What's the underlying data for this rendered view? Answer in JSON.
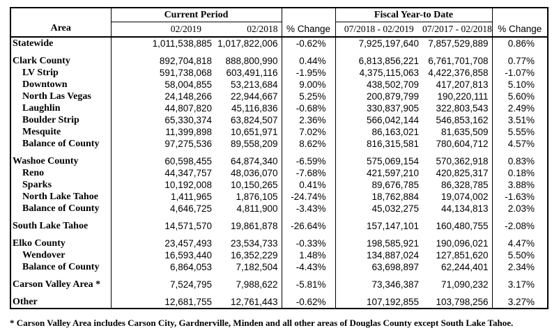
{
  "table": {
    "header": {
      "area_label": "Area",
      "pct_change_label": "% Change",
      "current_period": {
        "title": "Current Period",
        "col1": "02/2019",
        "col2": "02/2018"
      },
      "fiscal_ytd": {
        "title": "Fiscal Year-to Date",
        "col1": "07/2018 - 02/2019",
        "col2": "07/2017 - 02/2018"
      }
    },
    "rows": [
      {
        "area": "Statewide",
        "level": 0,
        "spacer_before": false,
        "cp_2019": "1,011,538,885",
        "cp_2018": "1,017,822,006",
        "pct_cp": "-0.62%",
        "fy_1819": "7,925,197,640",
        "fy_1718": "7,857,529,889",
        "pct_fy": "0.86%"
      },
      {
        "area": "Clark County",
        "level": 0,
        "spacer_before": true,
        "cp_2019": "892,704,818",
        "cp_2018": "888,800,990",
        "pct_cp": "0.44%",
        "fy_1819": "6,813,856,221",
        "fy_1718": "6,761,701,708",
        "pct_fy": "0.77%"
      },
      {
        "area": "LV Strip",
        "level": 1,
        "spacer_before": false,
        "cp_2019": "591,738,068",
        "cp_2018": "603,491,116",
        "pct_cp": "-1.95%",
        "fy_1819": "4,375,115,063",
        "fy_1718": "4,422,376,858",
        "pct_fy": "-1.07%"
      },
      {
        "area": "Downtown",
        "level": 1,
        "spacer_before": false,
        "cp_2019": "58,004,855",
        "cp_2018": "53,213,684",
        "pct_cp": "9.00%",
        "fy_1819": "438,502,709",
        "fy_1718": "417,207,813",
        "pct_fy": "5.10%"
      },
      {
        "area": "North Las Vegas",
        "level": 1,
        "spacer_before": false,
        "cp_2019": "24,148,266",
        "cp_2018": "22,944,667",
        "pct_cp": "5.25%",
        "fy_1819": "200,879,799",
        "fy_1718": "190,220,111",
        "pct_fy": "5.60%"
      },
      {
        "area": "Laughlin",
        "level": 1,
        "spacer_before": false,
        "cp_2019": "44,807,820",
        "cp_2018": "45,116,836",
        "pct_cp": "-0.68%",
        "fy_1819": "330,837,905",
        "fy_1718": "322,803,543",
        "pct_fy": "2.49%"
      },
      {
        "area": "Boulder Strip",
        "level": 1,
        "spacer_before": false,
        "cp_2019": "65,330,374",
        "cp_2018": "63,824,507",
        "pct_cp": "2.36%",
        "fy_1819": "566,042,144",
        "fy_1718": "546,853,162",
        "pct_fy": "3.51%"
      },
      {
        "area": "Mesquite",
        "level": 1,
        "spacer_before": false,
        "cp_2019": "11,399,898",
        "cp_2018": "10,651,971",
        "pct_cp": "7.02%",
        "fy_1819": "86,163,021",
        "fy_1718": "81,635,509",
        "pct_fy": "5.55%"
      },
      {
        "area": "Balance of County",
        "level": 1,
        "spacer_before": false,
        "cp_2019": "97,275,536",
        "cp_2018": "89,558,209",
        "pct_cp": "8.62%",
        "fy_1819": "816,315,581",
        "fy_1718": "780,604,712",
        "pct_fy": "4.57%"
      },
      {
        "area": "Washoe County",
        "level": 0,
        "spacer_before": true,
        "cp_2019": "60,598,455",
        "cp_2018": "64,874,340",
        "pct_cp": "-6.59%",
        "fy_1819": "575,069,154",
        "fy_1718": "570,362,918",
        "pct_fy": "0.83%"
      },
      {
        "area": "Reno",
        "level": 1,
        "spacer_before": false,
        "cp_2019": "44,347,757",
        "cp_2018": "48,036,070",
        "pct_cp": "-7.68%",
        "fy_1819": "421,597,210",
        "fy_1718": "420,825,317",
        "pct_fy": "0.18%"
      },
      {
        "area": "Sparks",
        "level": 1,
        "spacer_before": false,
        "cp_2019": "10,192,008",
        "cp_2018": "10,150,265",
        "pct_cp": "0.41%",
        "fy_1819": "89,676,785",
        "fy_1718": "86,328,785",
        "pct_fy": "3.88%"
      },
      {
        "area": "North Lake Tahoe",
        "level": 1,
        "spacer_before": false,
        "cp_2019": "1,411,965",
        "cp_2018": "1,876,105",
        "pct_cp": "-24.74%",
        "fy_1819": "18,762,884",
        "fy_1718": "19,074,002",
        "pct_fy": "-1.63%"
      },
      {
        "area": "Balance of County",
        "level": 1,
        "spacer_before": false,
        "cp_2019": "4,646,725",
        "cp_2018": "4,811,900",
        "pct_cp": "-3.43%",
        "fy_1819": "45,032,275",
        "fy_1718": "44,134,813",
        "pct_fy": "2.03%"
      },
      {
        "area": "South Lake Tahoe",
        "level": 0,
        "spacer_before": true,
        "cp_2019": "14,571,570",
        "cp_2018": "19,861,878",
        "pct_cp": "-26.64%",
        "fy_1819": "157,147,101",
        "fy_1718": "160,480,755",
        "pct_fy": "-2.08%"
      },
      {
        "area": "Elko County",
        "level": 0,
        "spacer_before": true,
        "cp_2019": "23,457,493",
        "cp_2018": "23,534,733",
        "pct_cp": "-0.33%",
        "fy_1819": "198,585,921",
        "fy_1718": "190,096,021",
        "pct_fy": "4.47%"
      },
      {
        "area": "Wendover",
        "level": 1,
        "spacer_before": false,
        "cp_2019": "16,593,440",
        "cp_2018": "16,352,229",
        "pct_cp": "1.48%",
        "fy_1819": "134,887,024",
        "fy_1718": "127,851,620",
        "pct_fy": "5.50%"
      },
      {
        "area": "Balance of County",
        "level": 1,
        "spacer_before": false,
        "cp_2019": "6,864,053",
        "cp_2018": "7,182,504",
        "pct_cp": "-4.43%",
        "fy_1819": "63,698,897",
        "fy_1718": "62,244,401",
        "pct_fy": "2.34%"
      },
      {
        "area": "Carson Valley Area *",
        "level": 0,
        "spacer_before": true,
        "cp_2019": "7,524,795",
        "cp_2018": "7,988,622",
        "pct_cp": "-5.81%",
        "fy_1819": "73,346,387",
        "fy_1718": "71,090,232",
        "pct_fy": "3.17%"
      },
      {
        "area": "Other",
        "level": 0,
        "spacer_before": true,
        "cp_2019": "12,681,755",
        "cp_2018": "12,761,443",
        "pct_cp": "-0.62%",
        "fy_1819": "107,192,855",
        "fy_1718": "103,798,256",
        "pct_fy": "3.27%"
      }
    ]
  },
  "footnote": "* Carson Valley Area includes Carson City, Gardnerville, Minden and all other areas of Douglas County except South Lake Tahoe."
}
